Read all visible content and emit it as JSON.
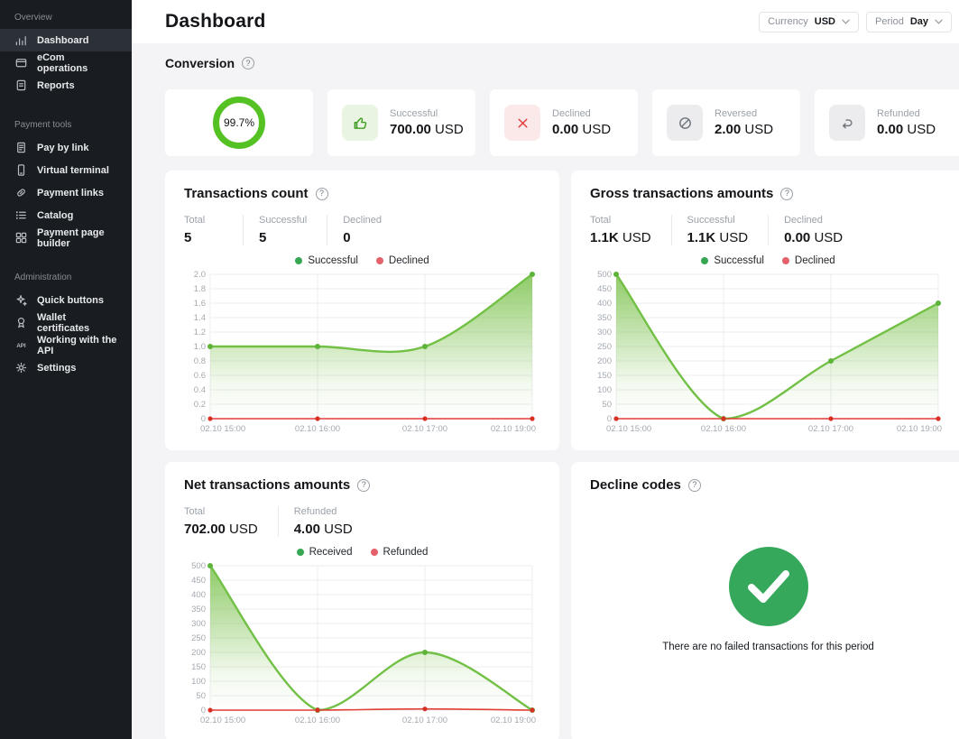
{
  "icons": {
    "help": "?"
  },
  "colors": {
    "ring_green": "#55c224",
    "check_green": "#35a85c",
    "legend_green": "#36a854",
    "legend_red": "#e4616b",
    "line_green": "#72c045",
    "line_red": "#e23d33"
  },
  "sidebar": {
    "sections": [
      {
        "label": "Overview",
        "items": [
          {
            "label": "Dashboard",
            "icon": "bar-chart-icon",
            "active": true
          },
          {
            "label": "eCom operations",
            "icon": "pos-terminal-icon",
            "active": false
          },
          {
            "label": "Reports",
            "icon": "report-icon",
            "active": false
          }
        ]
      },
      {
        "label": "Payment tools",
        "items": [
          {
            "label": "Pay by link",
            "icon": "receipt-icon",
            "active": false
          },
          {
            "label": "Virtual terminal",
            "icon": "terminal-icon",
            "active": false
          },
          {
            "label": "Payment links",
            "icon": "link-icon",
            "active": false
          },
          {
            "label": "Catalog",
            "icon": "list-icon",
            "active": false
          },
          {
            "label": "Payment page builder",
            "icon": "grid-icon",
            "active": false
          }
        ]
      },
      {
        "label": "Administration",
        "items": [
          {
            "label": "Quick buttons",
            "icon": "sparkle-icon",
            "active": false
          },
          {
            "label": "Wallet certificates",
            "icon": "certificate-icon",
            "active": false
          },
          {
            "label": "Working with the API",
            "icon": "api-icon",
            "active": false
          },
          {
            "label": "Settings",
            "icon": "gear-icon",
            "active": false
          }
        ]
      }
    ]
  },
  "header": {
    "title": "Dashboard",
    "currency_label": "Currency",
    "currency_value": "USD",
    "period_label": "Period",
    "period_value": "Day"
  },
  "conversion": {
    "title": "Conversion",
    "rate": "99.7%",
    "cards": [
      {
        "label": "Successful",
        "value": "700.00",
        "unit": "USD",
        "icon": "thumbs-up-icon",
        "theme": "green"
      },
      {
        "label": "Declined",
        "value": "0.00",
        "unit": "USD",
        "icon": "x-icon",
        "theme": "red"
      },
      {
        "label": "Reversed",
        "value": "2.00",
        "unit": "USD",
        "icon": "slash-circle-icon",
        "theme": "gray"
      },
      {
        "label": "Refunded",
        "value": "0.00",
        "unit": "USD",
        "icon": "undo-icon",
        "theme": "gray"
      }
    ]
  },
  "panels": [
    {
      "title": "Transactions count",
      "stats": [
        {
          "label": "Total",
          "value": "5",
          "unit": ""
        },
        {
          "label": "Successful",
          "value": "5",
          "unit": ""
        },
        {
          "label": "Declined",
          "value": "0",
          "unit": ""
        }
      ],
      "chart": 0
    },
    {
      "title": "Gross transactions amounts",
      "stats": [
        {
          "label": "Total",
          "value": "1.1K",
          "unit": "USD"
        },
        {
          "label": "Successful",
          "value": "1.1K",
          "unit": "USD"
        },
        {
          "label": "Declined",
          "value": "0.00",
          "unit": "USD"
        }
      ],
      "chart": 1
    },
    {
      "title": "Net transactions amounts",
      "stats": [
        {
          "label": "Total",
          "value": "702.00",
          "unit": "USD"
        },
        {
          "label": "Refunded",
          "value": "4.00",
          "unit": "USD"
        }
      ],
      "chart": 2
    },
    {
      "title": "Decline codes",
      "empty_message": "There are no failed transactions for this period"
    }
  ],
  "chart_data": [
    {
      "type": "area",
      "title": "Transactions count",
      "categories": [
        "02.10 15:00",
        "02.10 16:00",
        "02.10 17:00",
        "02.10 19:00"
      ],
      "series": [
        {
          "name": "Successful",
          "values": [
            1,
            1,
            1,
            2
          ],
          "color": "#72c045"
        },
        {
          "name": "Declined",
          "values": [
            0,
            0,
            0,
            0
          ],
          "color": "#e23d33"
        }
      ],
      "legend": [
        {
          "label": "Successful",
          "color": "#36a854"
        },
        {
          "label": "Declined",
          "color": "#e4616b"
        }
      ],
      "ylim": [
        0,
        2
      ],
      "yticks": [
        "2.0",
        "1.8",
        "1.6",
        "1.4",
        "1.2",
        "1.0",
        "0.8",
        "0.6",
        "0.4",
        "0.2",
        "0"
      ],
      "grid": true,
      "legend_position": "top"
    },
    {
      "type": "area",
      "title": "Gross transactions amounts",
      "categories": [
        "02.10 15:00",
        "02.10 16:00",
        "02.10 17:00",
        "02.10 19:00"
      ],
      "series": [
        {
          "name": "Successful",
          "values": [
            500,
            0,
            200,
            400
          ],
          "color": "#72c045"
        },
        {
          "name": "Declined",
          "values": [
            0,
            0,
            0,
            0
          ],
          "color": "#e23d33"
        }
      ],
      "legend": [
        {
          "label": "Successful",
          "color": "#36a854"
        },
        {
          "label": "Declined",
          "color": "#e4616b"
        }
      ],
      "ylim": [
        0,
        500
      ],
      "yticks": [
        "500",
        "450",
        "400",
        "350",
        "300",
        "250",
        "200",
        "150",
        "100",
        "50",
        "0"
      ],
      "grid": true,
      "legend_position": "top"
    },
    {
      "type": "area",
      "title": "Net transactions amounts",
      "categories": [
        "02.10 15:00",
        "02.10 16:00",
        "02.10 17:00",
        "02.10 19:00"
      ],
      "series": [
        {
          "name": "Received",
          "values": [
            500,
            0,
            200,
            0
          ],
          "color": "#72c045"
        },
        {
          "name": "Refunded",
          "values": [
            0,
            0,
            4,
            0
          ],
          "color": "#e23d33"
        }
      ],
      "legend": [
        {
          "label": "Received",
          "color": "#36a854"
        },
        {
          "label": "Refunded",
          "color": "#e4616b"
        }
      ],
      "ylim": [
        0,
        500
      ],
      "yticks": [
        "500",
        "450",
        "400",
        "350",
        "300",
        "250",
        "200",
        "150",
        "100",
        "50",
        "0"
      ],
      "grid": true,
      "legend_position": "top"
    }
  ]
}
